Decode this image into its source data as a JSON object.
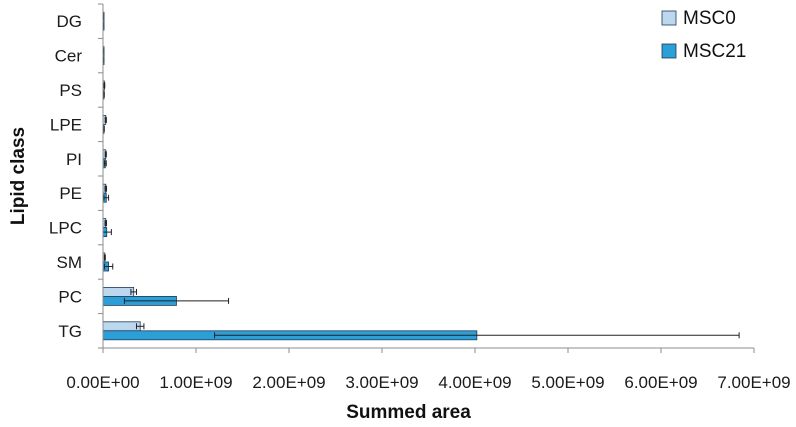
{
  "chart_data": {
    "type": "bar",
    "orientation": "horizontal",
    "title": "",
    "xlabel": "Summed area",
    "ylabel": "Lipid class",
    "categories": [
      "TG",
      "PC",
      "SM",
      "LPC",
      "PE",
      "PI",
      "LPE",
      "PS",
      "Cer",
      "DG"
    ],
    "xlim": [
      0,
      7000000000
    ],
    "xticks": [
      0,
      1000000000,
      2000000000,
      3000000000,
      4000000000,
      5000000000,
      6000000000,
      7000000000
    ],
    "xtick_labels": [
      "0.00E+00",
      "1.00E+09",
      "2.00E+09",
      "3.00E+09",
      "4.00E+09",
      "5.00E+09",
      "6.00E+09",
      "7.00E+09"
    ],
    "grid": false,
    "legend_position": "top-right",
    "series": [
      {
        "name": "MSC0",
        "color": "#bdd7ee",
        "values": [
          400000000,
          330000000,
          20000000,
          30000000,
          30000000,
          30000000,
          30000000,
          15000000,
          5000000,
          5000000
        ],
        "errors": [
          40000000,
          30000000,
          5000000,
          8000000,
          8000000,
          6000000,
          6000000,
          4000000,
          2000000,
          2000000
        ]
      },
      {
        "name": "MSC21",
        "color": "#2d9fd8",
        "values": [
          4020000000,
          790000000,
          60000000,
          40000000,
          35000000,
          25000000,
          10000000,
          10000000,
          5000000,
          5000000
        ],
        "errors": [
          2820000000,
          560000000,
          45000000,
          50000000,
          25000000,
          10000000,
          4000000,
          4000000,
          2000000,
          2000000
        ]
      }
    ]
  }
}
